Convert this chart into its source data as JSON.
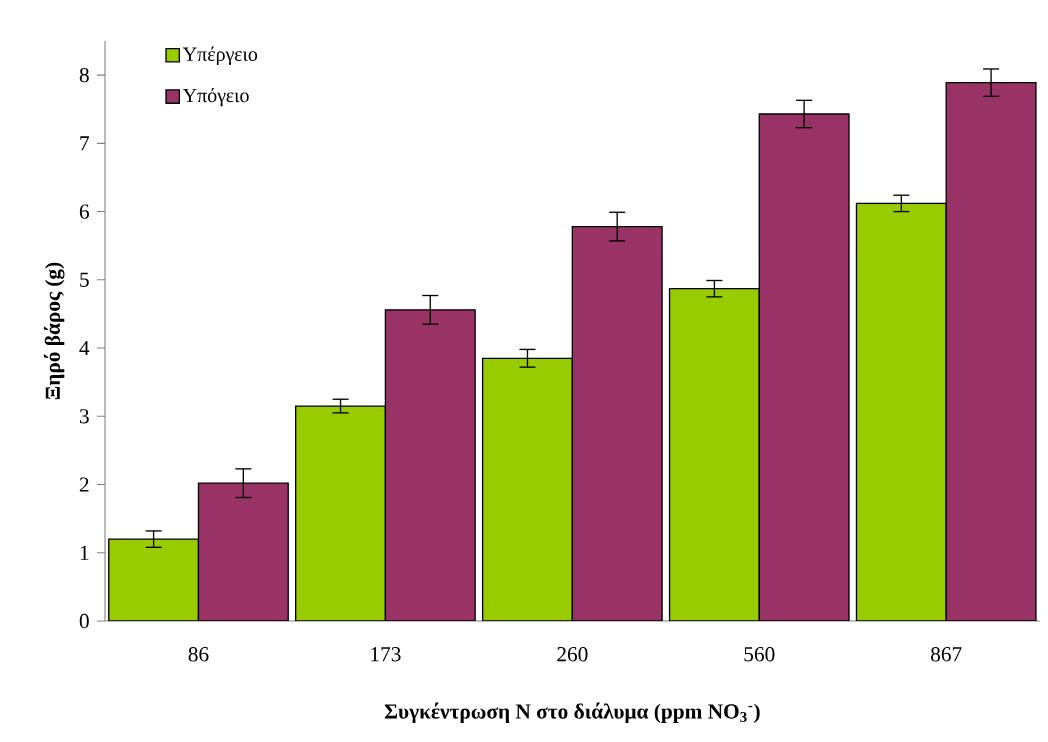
{
  "chart_data": {
    "type": "bar",
    "xlabel": "**Συγκέντρωση N στο διάλυμα (ppm NO$_{3}$$^{-}$)**",
    "ylabel": "Ξηρό βάρος (g)",
    "categories": [
      "86",
      "173",
      "260",
      "560",
      "867"
    ],
    "series": [
      {
        "name": "Υπέργειο",
        "color": "#99cc00",
        "values": [
          1.2,
          3.15,
          3.85,
          4.87,
          6.12
        ],
        "errors": [
          0.12,
          0.1,
          0.13,
          0.12,
          0.12
        ]
      },
      {
        "name": "Υπόγειο",
        "color": "#993366",
        "values": [
          2.02,
          4.56,
          5.78,
          7.43,
          7.89
        ],
        "errors": [
          0.21,
          0.21,
          0.21,
          0.2,
          0.2
        ]
      }
    ],
    "ylim": [
      0,
      8.5
    ],
    "yticks": [
      0,
      1,
      2,
      3,
      4,
      5,
      6,
      7,
      8
    ],
    "legend": "top left",
    "grid": false
  }
}
